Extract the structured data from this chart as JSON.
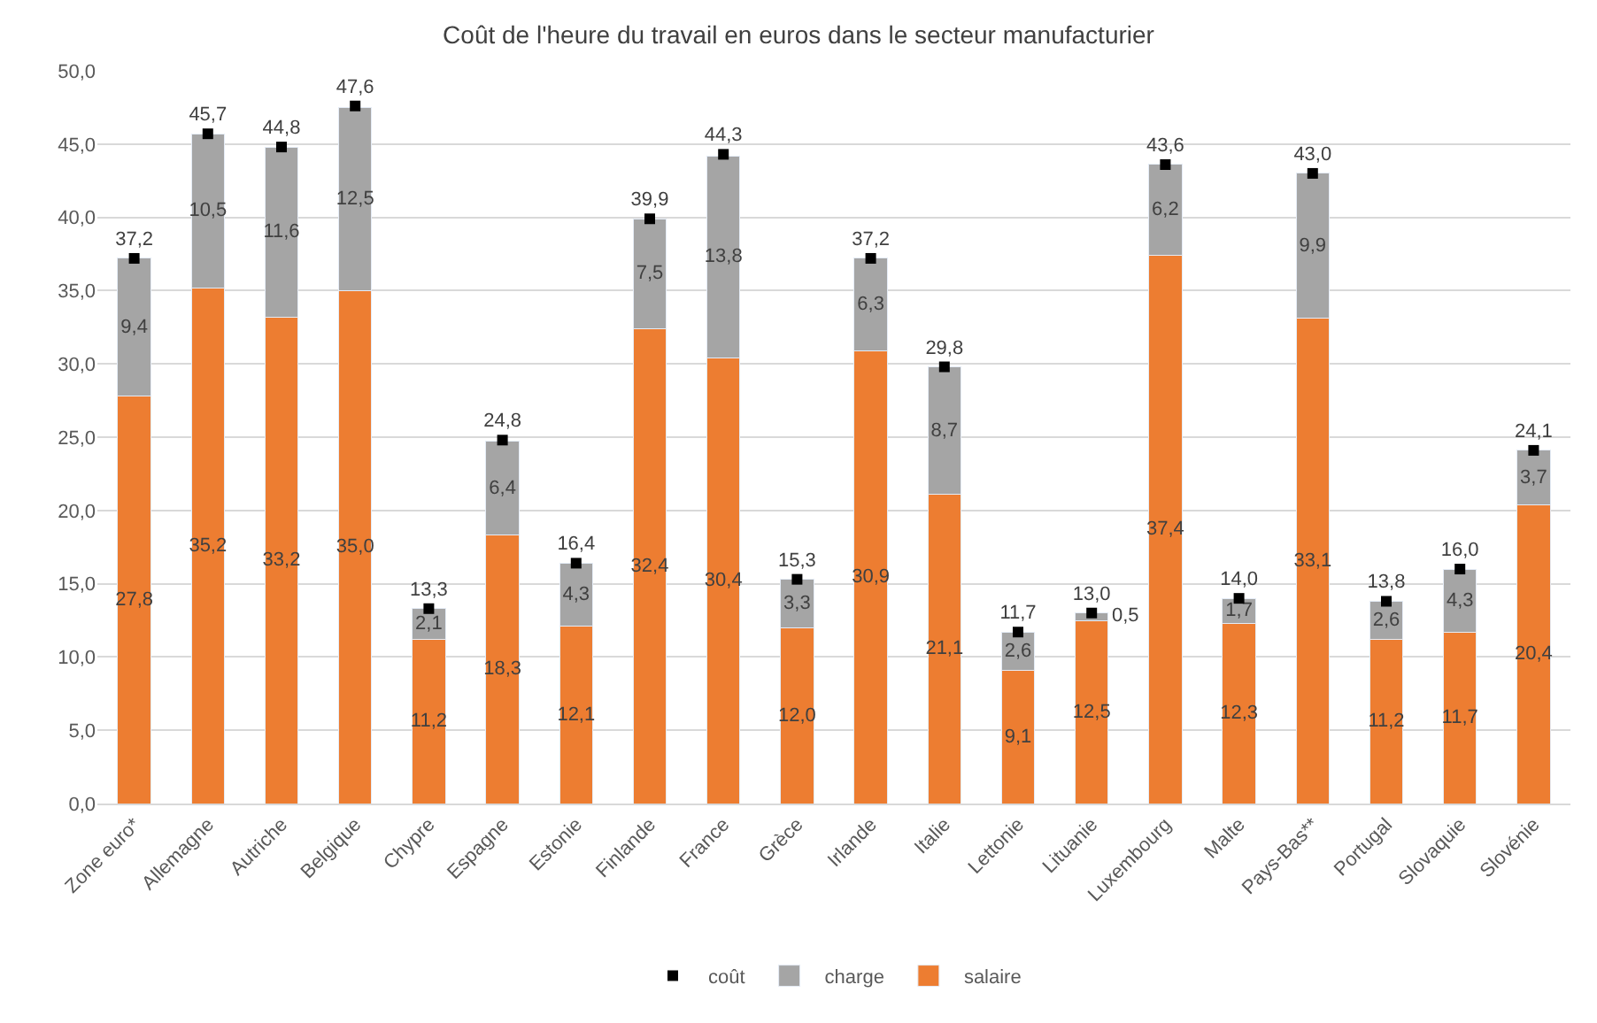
{
  "chart_data": {
    "type": "bar",
    "title": "Coût de l'heure du travail en euros dans le secteur manufacturier",
    "categories": [
      "Zone euro*",
      "Allemagne",
      "Autriche",
      "Belgique",
      "Chypre",
      "Espagne",
      "Estonie",
      "Finlande",
      "France",
      "Grèce",
      "Irlande",
      "Italie",
      "Lettonie",
      "Lituanie",
      "Luxembourg",
      "Malte",
      "Pays-Bas**",
      "Portugal",
      "Slovaquie",
      "Slovénie"
    ],
    "stacked": true,
    "series": [
      {
        "name": "salaire",
        "color": "#ed7d31",
        "values": [
          27.8,
          35.2,
          33.2,
          35.0,
          11.2,
          18.3,
          12.1,
          32.4,
          30.4,
          12.0,
          30.9,
          21.1,
          9.1,
          12.5,
          37.4,
          12.3,
          33.1,
          11.2,
          11.7,
          20.4
        ],
        "value_labels": [
          "27,8",
          "35,2",
          "33,2",
          "35,0",
          "11,2",
          "18,3",
          "12,1",
          "32,4",
          "30,4",
          "12,0",
          "30,9",
          "21,1",
          "9,1",
          "12,5",
          "37,4",
          "12,3",
          "33,1",
          "11,2",
          "11,7",
          "20,4"
        ]
      },
      {
        "name": "charge",
        "color": "#a5a5a5",
        "values": [
          9.4,
          10.5,
          11.6,
          12.5,
          2.1,
          6.4,
          4.3,
          7.5,
          13.8,
          3.3,
          6.3,
          8.7,
          2.6,
          0.5,
          6.2,
          1.7,
          9.9,
          2.6,
          4.3,
          3.7
        ],
        "value_labels": [
          "9,4",
          "10,5",
          "11,6",
          "12,5",
          "2,1",
          "6,4",
          "4,3",
          "7,5",
          "13,8",
          "3,3",
          "6,3",
          "8,7",
          "2,6",
          "0,5",
          "6,2",
          "1,7",
          "9,9",
          "2,6",
          "4,3",
          "3,7"
        ]
      },
      {
        "name": "coût",
        "type": "scatter",
        "color": "#000000",
        "values": [
          37.2,
          45.7,
          44.8,
          47.6,
          13.3,
          24.8,
          16.4,
          39.9,
          44.3,
          15.3,
          37.2,
          29.8,
          11.7,
          13.0,
          43.6,
          14.0,
          43.0,
          13.8,
          16.0,
          24.1
        ],
        "value_labels": [
          "37,2",
          "45,7",
          "44,8",
          "47,6",
          "13,3",
          "24,8",
          "16,4",
          "39,9",
          "44,3",
          "15,3",
          "37,2",
          "29,8",
          "11,7",
          "13,0",
          "43,6",
          "14,0",
          "43,0",
          "13,8",
          "16,0",
          "24,1"
        ]
      }
    ],
    "ylim": [
      0,
      50
    ],
    "yticks": [
      {
        "value": 0,
        "label": "0,0"
      },
      {
        "value": 5,
        "label": "5,0"
      },
      {
        "value": 10,
        "label": "10,0"
      },
      {
        "value": 15,
        "label": "15,0"
      },
      {
        "value": 20,
        "label": "20,0"
      },
      {
        "value": 25,
        "label": "25,0"
      },
      {
        "value": 30,
        "label": "30,0"
      },
      {
        "value": 35,
        "label": "35,0"
      },
      {
        "value": 40,
        "label": "40,0"
      },
      {
        "value": 45,
        "label": "45,0"
      },
      {
        "value": 50,
        "label": "50,0"
      }
    ],
    "grid": "y",
    "legend": "bottom",
    "marker": "square"
  }
}
